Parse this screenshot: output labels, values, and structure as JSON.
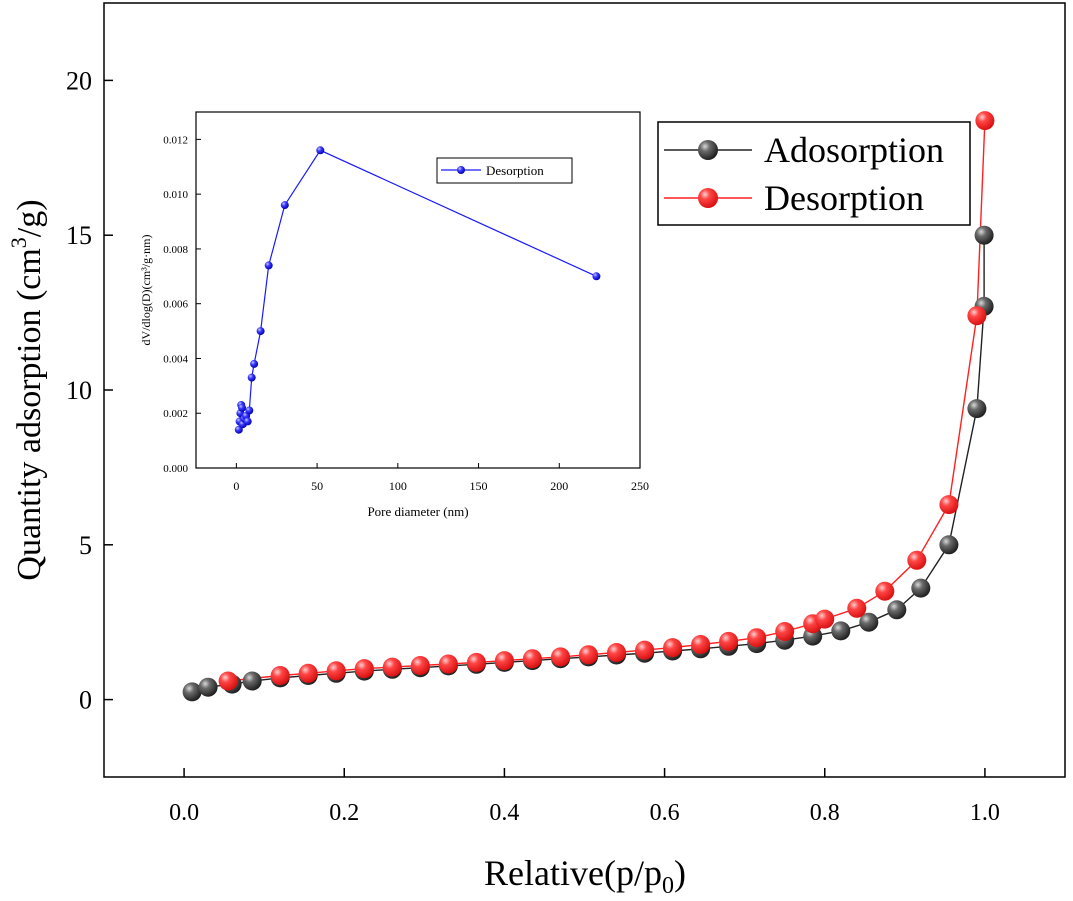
{
  "chart_data": [
    {
      "id": "main",
      "type": "scatter",
      "xlabel_main": "Relative(p/p",
      "xlabel_sub": "0",
      "xlabel_end": ")",
      "ylabel_main": "Quantity adsorption (cm",
      "ylabel_sup": "3",
      "ylabel_end": "/g)",
      "xlim": [
        -0.1,
        1.1
      ],
      "ylim": [
        -2.5,
        22.5
      ],
      "xticks": [
        0.0,
        0.2,
        0.4,
        0.6,
        0.8,
        1.0
      ],
      "xtick_labels": [
        "0.0",
        "0.2",
        "0.4",
        "0.6",
        "0.8",
        "1.0"
      ],
      "yticks": [
        0,
        5,
        10,
        15,
        20
      ],
      "ytick_labels": [
        "0",
        "5",
        "10",
        "15",
        "20"
      ],
      "grid": false,
      "legend_position": "top-right",
      "series": [
        {
          "name": "Adosorption",
          "color": "#3a3a3a",
          "line_color": "#222222",
          "x": [
            0.01,
            0.03,
            0.06,
            0.085,
            0.12,
            0.155,
            0.19,
            0.225,
            0.26,
            0.295,
            0.33,
            0.365,
            0.4,
            0.435,
            0.47,
            0.505,
            0.54,
            0.575,
            0.61,
            0.645,
            0.68,
            0.715,
            0.75,
            0.785,
            0.82,
            0.855,
            0.89,
            0.92,
            0.955,
            0.99,
            0.999,
            0.999
          ],
          "y": [
            0.25,
            0.4,
            0.5,
            0.6,
            0.7,
            0.78,
            0.85,
            0.92,
            0.98,
            1.03,
            1.09,
            1.14,
            1.2,
            1.26,
            1.32,
            1.38,
            1.44,
            1.5,
            1.57,
            1.64,
            1.72,
            1.81,
            1.92,
            2.05,
            2.22,
            2.5,
            2.9,
            3.6,
            5.0,
            9.4,
            12.7,
            15.0
          ]
        },
        {
          "name": "Desorption",
          "color": "#ff2a2a",
          "line_color": "#ff2020",
          "x": [
            0.055,
            0.12,
            0.155,
            0.19,
            0.225,
            0.26,
            0.295,
            0.33,
            0.365,
            0.4,
            0.435,
            0.47,
            0.505,
            0.54,
            0.575,
            0.61,
            0.645,
            0.68,
            0.715,
            0.75,
            0.785,
            0.8,
            0.84,
            0.875,
            0.915,
            0.955,
            0.99,
            1.0
          ],
          "y": [
            0.6,
            0.78,
            0.85,
            0.93,
            1.0,
            1.05,
            1.1,
            1.15,
            1.2,
            1.26,
            1.32,
            1.38,
            1.45,
            1.52,
            1.6,
            1.68,
            1.78,
            1.88,
            2.0,
            2.2,
            2.45,
            2.6,
            2.95,
            3.5,
            4.5,
            6.3,
            12.4,
            18.7
          ]
        }
      ]
    },
    {
      "id": "inset",
      "type": "line",
      "xlabel": "Pore diameter (nm)",
      "ylabel": "dV/dlog(D)(cm³/g·nm)",
      "xlim": [
        -25,
        250
      ],
      "ylim": [
        0,
        0.013
      ],
      "xticks": [
        0,
        50,
        100,
        150,
        200,
        250
      ],
      "xtick_labels": [
        "0",
        "50",
        "100",
        "150",
        "200",
        "250"
      ],
      "yticks": [
        0,
        0.002,
        0.004,
        0.006,
        0.008,
        0.01,
        0.012
      ],
      "ytick_labels": [
        "0.000",
        "0.002",
        "0.004",
        "0.006",
        "0.008",
        "0.010",
        "0.012"
      ],
      "grid": false,
      "legend_position": "top-right",
      "series": [
        {
          "name": "Desorption",
          "color": "#1a1aff",
          "x": [
            1.5,
            2,
            2.5,
            3,
            3.5,
            4,
            5,
            6,
            7,
            8,
            9.5,
            11,
            15,
            20,
            30,
            52,
            223
          ],
          "y": [
            0.0014,
            0.0017,
            0.002,
            0.0023,
            0.0022,
            0.0016,
            0.0018,
            0.0019,
            0.0017,
            0.0021,
            0.0033,
            0.0038,
            0.005,
            0.0074,
            0.0096,
            0.0116,
            0.007
          ]
        }
      ]
    }
  ]
}
